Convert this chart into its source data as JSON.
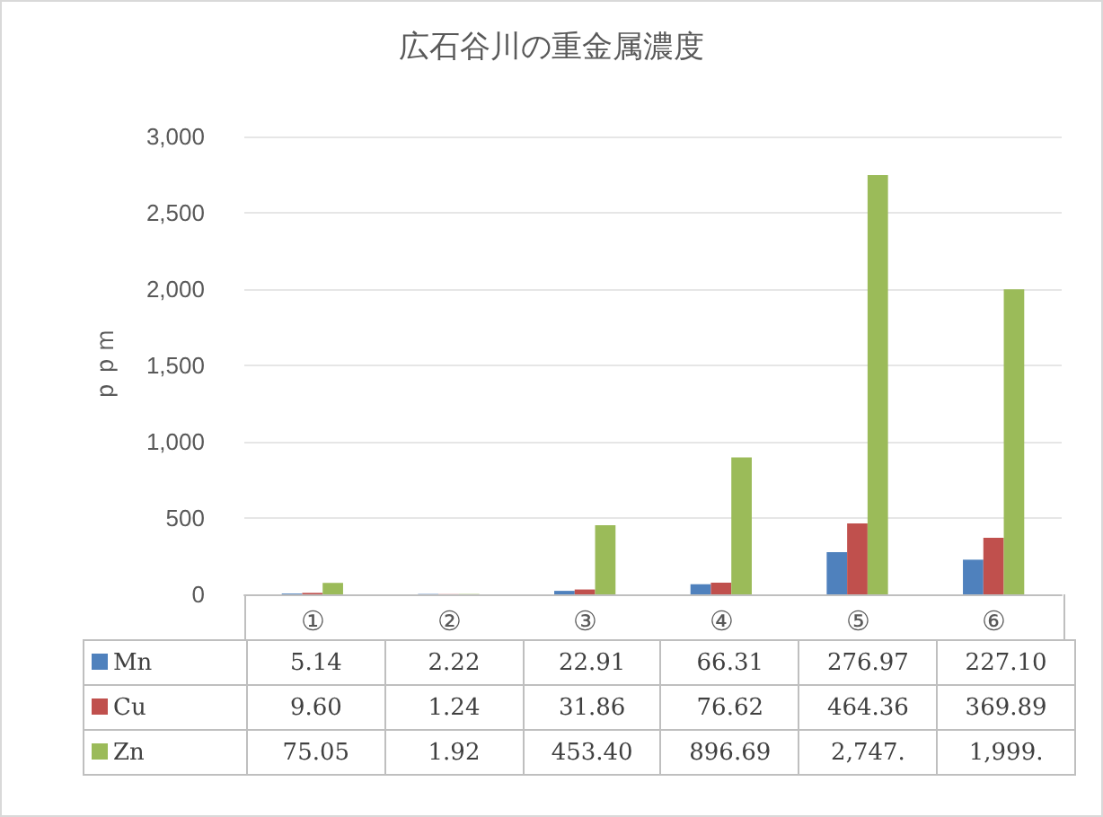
{
  "chart_data": {
    "type": "bar",
    "title": "広石谷川の重金属濃度",
    "ylabel": "ｐｐｍ",
    "categories": [
      "①",
      "②",
      "③",
      "④",
      "⑤",
      "⑥"
    ],
    "series": [
      {
        "name": "Mn",
        "color": "#4f81bd",
        "values": [
          5.14,
          2.22,
          22.91,
          66.31,
          276.97,
          227.1
        ],
        "value_labels": [
          "5.14",
          "2.22",
          "22.91",
          "66.31",
          "276.97",
          "227.10"
        ]
      },
      {
        "name": "Cu",
        "color": "#c0504d",
        "values": [
          9.6,
          1.24,
          31.86,
          76.62,
          464.36,
          369.89
        ],
        "value_labels": [
          "9.60",
          "1.24",
          "31.86",
          "76.62",
          "464.36",
          "369.89"
        ]
      },
      {
        "name": "Zn",
        "color": "#9bbb59",
        "values": [
          75.05,
          1.92,
          453.4,
          896.69,
          2747,
          1999
        ],
        "value_labels": [
          "75.05",
          "1.92",
          "453.40",
          "896.69",
          "2,747.",
          "1,999."
        ]
      }
    ],
    "ylim": [
      0,
      3000
    ],
    "yticks": [
      {
        "value": 0,
        "label": "0"
      },
      {
        "value": 500,
        "label": "500"
      },
      {
        "value": 1000,
        "label": "1,000"
      },
      {
        "value": 1500,
        "label": "1,500"
      },
      {
        "value": 2000,
        "label": "2,000"
      },
      {
        "value": 2500,
        "label": "2,500"
      },
      {
        "value": 3000,
        "label": "3,000"
      }
    ],
    "grid": "y",
    "legend": "bottom left"
  }
}
